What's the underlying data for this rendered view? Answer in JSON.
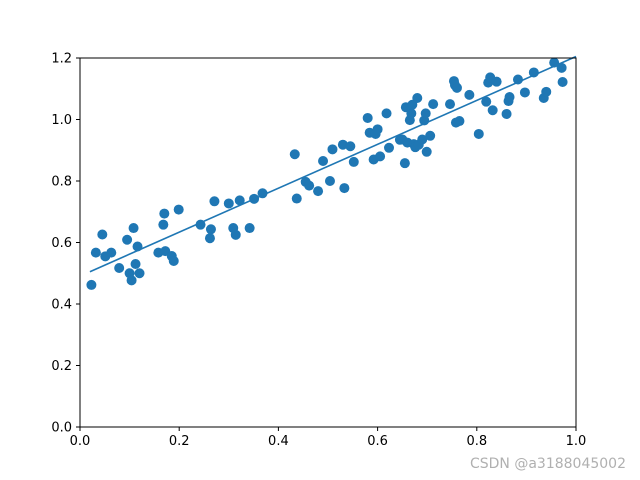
{
  "chart_data": {
    "type": "scatter",
    "xlim": [
      0.0,
      1.0
    ],
    "ylim": [
      0.0,
      1.2
    ],
    "xticks": [
      "0.0",
      "0.2",
      "0.4",
      "0.6",
      "0.8",
      "1.0"
    ],
    "yticks": [
      "0.0",
      "0.2",
      "0.4",
      "0.6",
      "0.8",
      "1.0",
      "1.2"
    ],
    "grid": false,
    "colors": {
      "series": "#1f77b4",
      "axis": "#000000"
    },
    "scatter_points": {
      "x": [
        0.023,
        0.032,
        0.045,
        0.051,
        0.063,
        0.079,
        0.095,
        0.1,
        0.104,
        0.108,
        0.112,
        0.116,
        0.12,
        0.158,
        0.168,
        0.17,
        0.172,
        0.185,
        0.189,
        0.199,
        0.243,
        0.262,
        0.264,
        0.271,
        0.3,
        0.309,
        0.314,
        0.322,
        0.342,
        0.351,
        0.368,
        0.433,
        0.437,
        0.455,
        0.462,
        0.48,
        0.49,
        0.504,
        0.509,
        0.53,
        0.533,
        0.545,
        0.552,
        0.58,
        0.584,
        0.592,
        0.596,
        0.6,
        0.605,
        0.618,
        0.623,
        0.645,
        0.65,
        0.655,
        0.657,
        0.66,
        0.665,
        0.668,
        0.67,
        0.673,
        0.676,
        0.68,
        0.683,
        0.69,
        0.694,
        0.697,
        0.699,
        0.706,
        0.712,
        0.746,
        0.754,
        0.756,
        0.758,
        0.76,
        0.765,
        0.785,
        0.804,
        0.819,
        0.823,
        0.827,
        0.832,
        0.84,
        0.86,
        0.864,
        0.866,
        0.883,
        0.897,
        0.915,
        0.935,
        0.94,
        0.956,
        0.971,
        0.973
      ],
      "y": [
        0.462,
        0.567,
        0.626,
        0.555,
        0.567,
        0.517,
        0.609,
        0.5,
        0.477,
        0.647,
        0.53,
        0.587,
        0.5,
        0.567,
        0.658,
        0.694,
        0.572,
        0.556,
        0.54,
        0.707,
        0.658,
        0.614,
        0.643,
        0.734,
        0.727,
        0.647,
        0.625,
        0.737,
        0.647,
        0.742,
        0.76,
        0.887,
        0.743,
        0.797,
        0.785,
        0.767,
        0.865,
        0.8,
        0.903,
        0.918,
        0.777,
        0.913,
        0.862,
        1.005,
        0.957,
        0.87,
        0.953,
        0.968,
        0.88,
        1.02,
        0.908,
        0.934,
        0.935,
        0.858,
        1.04,
        0.925,
        0.998,
        1.02,
        1.048,
        0.92,
        0.91,
        1.07,
        0.918,
        0.935,
        0.997,
        1.02,
        0.895,
        0.947,
        1.05,
        1.05,
        1.125,
        1.112,
        0.99,
        1.103,
        0.995,
        1.08,
        0.953,
        1.058,
        1.12,
        1.137,
        1.03,
        1.123,
        1.018,
        1.06,
        1.073,
        1.13,
        1.088,
        1.153,
        1.07,
        1.09,
        1.185,
        1.168,
        1.122
      ]
    },
    "fit_line": {
      "x": [
        0.02,
        1.0
      ],
      "y": [
        0.505,
        1.205
      ]
    }
  },
  "watermark": "CSDN @a3188045002"
}
